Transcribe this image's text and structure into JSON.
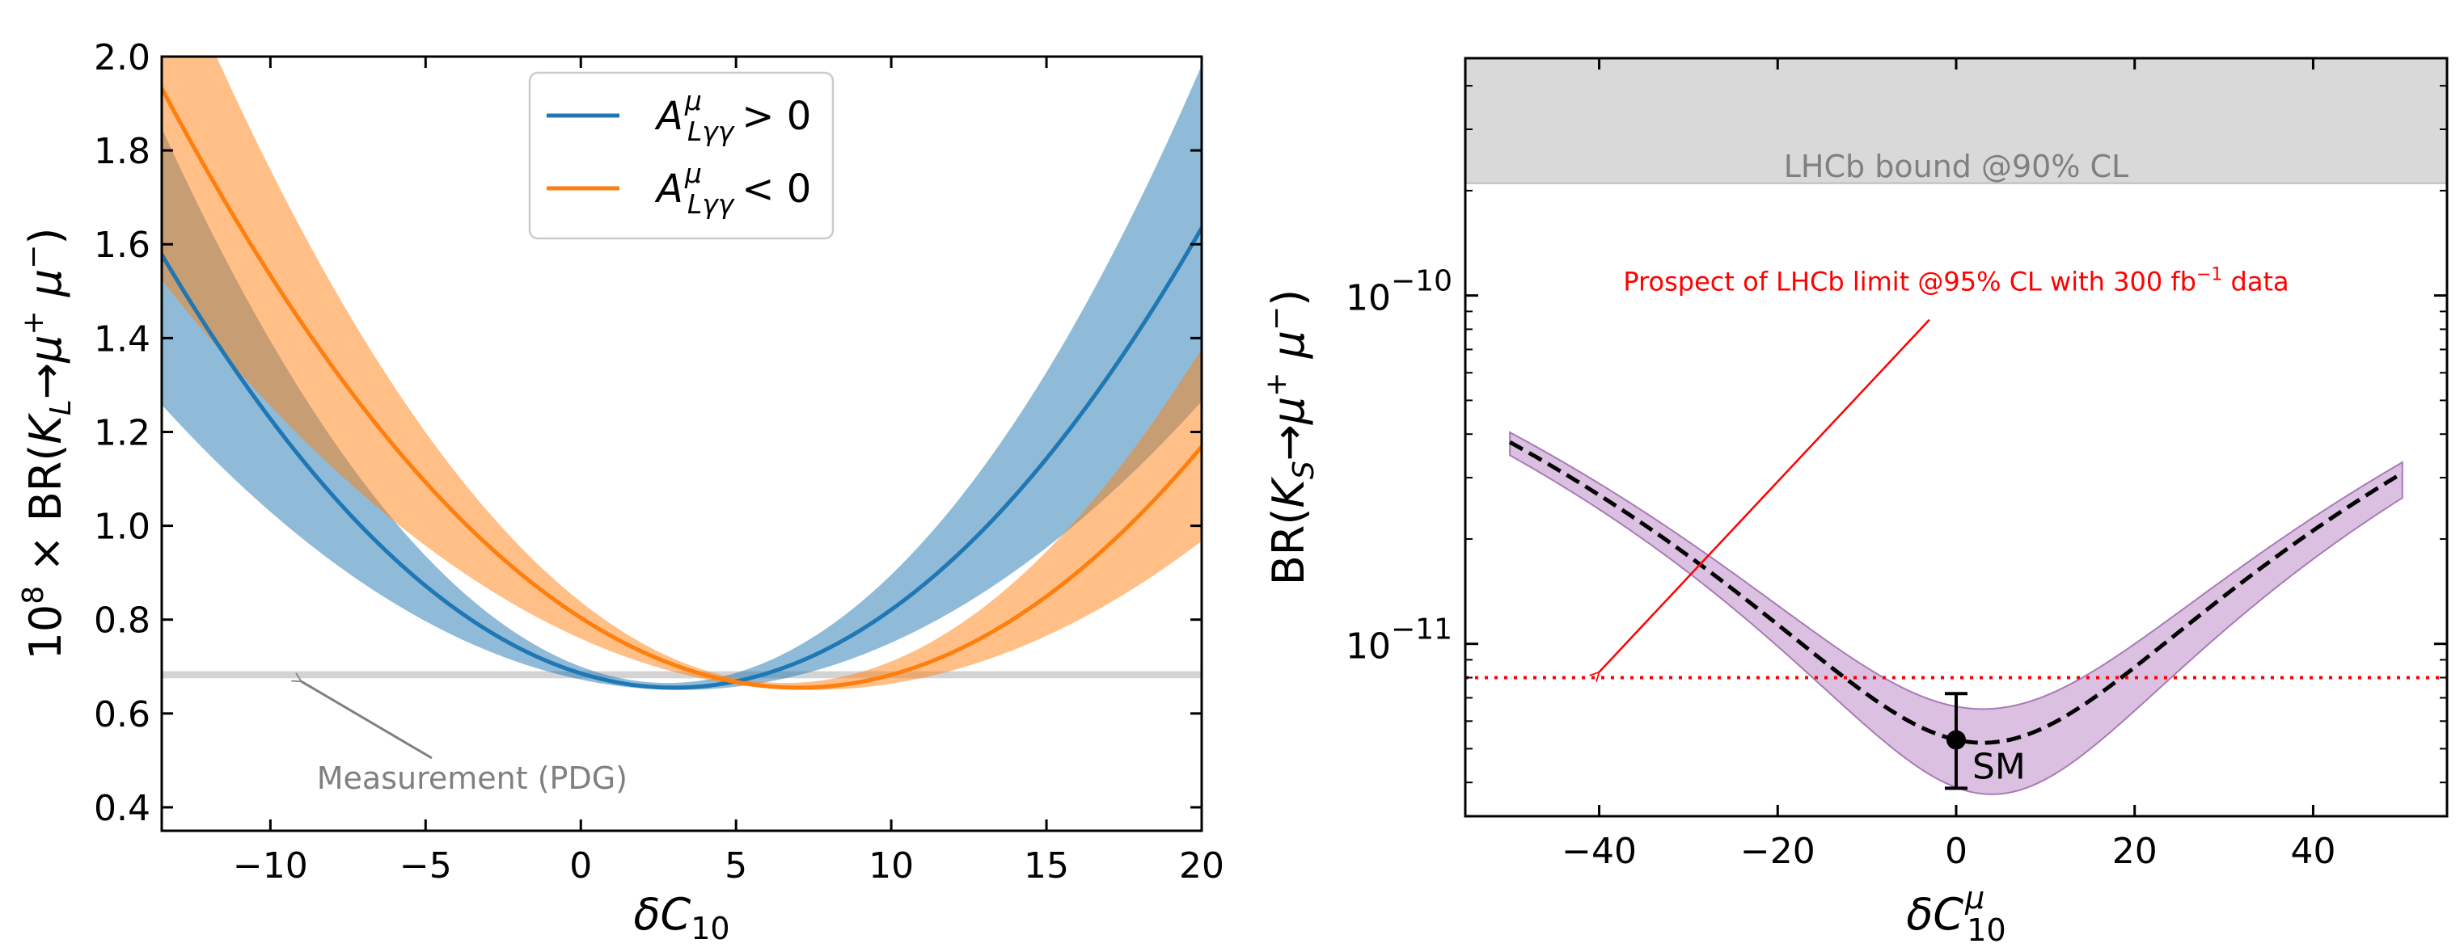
{
  "chart_data": [
    {
      "type": "line",
      "panel": "left",
      "xlabel": "δC_10",
      "ylabel": "10^8 × BR(K_L→μ⁺μ⁻)",
      "xlim": [
        -13.5,
        20
      ],
      "ylim": [
        0.35,
        2.0
      ],
      "xticks": [
        -10,
        -5,
        0,
        5,
        10,
        15,
        20
      ],
      "xtick_labels": [
        "−10",
        "−5",
        "0",
        "5",
        "10",
        "15",
        "20"
      ],
      "yticks": [
        0.4,
        0.6,
        0.8,
        1.0,
        1.2,
        1.4,
        1.6,
        1.8,
        2.0
      ],
      "ytick_labels": [
        "0.4",
        "0.6",
        "0.8",
        "1.0",
        "1.2",
        "1.4",
        "1.6",
        "1.8",
        "2.0"
      ],
      "legend_position": "top-center",
      "series": [
        {
          "name": "A^μ_Lγγ > 0",
          "legend_label": "A^μ_Lγγ > 0",
          "color": "#1f77b4",
          "band_color": "#1f77b4",
          "center": {
            "x0": 3.0,
            "y0": 0.655,
            "k": 0.00339
          },
          "upper": {
            "x0": 2.8,
            "y0": 0.665,
            "k": 0.00445
          },
          "lower": {
            "x0": 3.2,
            "y0": 0.65,
            "k": 0.00218
          }
        },
        {
          "name": "A^μ_Lγγ < 0",
          "legend_label": "A^μ_Lγγ < 0",
          "color": "#ff7f0e",
          "band_color": "#ff7f0e",
          "center": {
            "x0": 7.0,
            "y0": 0.655,
            "k": 0.00304
          },
          "upper": {
            "x0": 6.6,
            "y0": 0.665,
            "k": 0.00397
          },
          "lower": {
            "x0": 7.4,
            "y0": 0.65,
            "k": 0.002
          }
        }
      ],
      "measurement_band": {
        "low": 0.675,
        "high": 0.69,
        "color": "#c0c0c0"
      },
      "annotation": {
        "text": "Measurement (PDG)",
        "arrow_to": [
          -9,
          0.675
        ],
        "text_at": [
          -3.5,
          0.46
        ]
      }
    },
    {
      "type": "line",
      "panel": "right",
      "scale_y": "log",
      "xlabel": "δC^μ_10",
      "ylabel": "BR(K_S→μ⁺μ⁻)",
      "xlim": [
        -55,
        55
      ],
      "ylim": [
        3.2e-12,
        4.8e-10
      ],
      "xticks": [
        -40,
        -20,
        0,
        20,
        40
      ],
      "xtick_labels": [
        "−40",
        "−20",
        "0",
        "20",
        "40"
      ],
      "ytick_major": [
        1e-11,
        1e-10
      ],
      "ytick_labels": [
        {
          "base": "10",
          "exp": "−11"
        },
        {
          "base": "10",
          "exp": "−10"
        }
      ],
      "lhcb_bound": {
        "value": 2.1e-10,
        "label": "LHCb bound @90% CL",
        "color": "#d9d9d9"
      },
      "prospect": {
        "value": 8e-12,
        "label_pre": "Prospect of LHCb limit @95% CL with 300 fb",
        "label_exp": "−1",
        "label_post": " data",
        "arrow_from": [
          -3,
          1e-10
        ],
        "arrow_to": [
          -40,
          8.3e-12
        ],
        "color": "#ff0000"
      },
      "prediction": {
        "x_range": [
          -50,
          50
        ],
        "center": {
          "x0": 3.0,
          "y_min": 5.2e-12,
          "k": 0.00224
        },
        "upper": {
          "x0": 3.0,
          "y_min": 6.5e-12,
          "k": 0.00186
        },
        "lower": {
          "x0": 4.0,
          "y_min": 3.7e-12,
          "k": 0.00288
        },
        "band_color": "#c596cf",
        "line_color": "#000000"
      },
      "sm_point": {
        "x": 0,
        "y": 5.3e-12,
        "err_low": 3.85e-12,
        "err_high": 7.2e-12,
        "label": "SM"
      }
    }
  ]
}
